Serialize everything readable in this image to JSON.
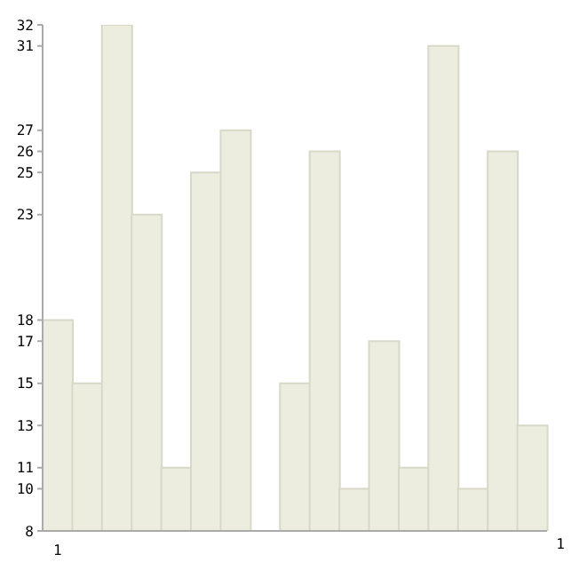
{
  "chart_data": {
    "type": "bar",
    "categories": [
      "1",
      null,
      null,
      null,
      null,
      null,
      null,
      null,
      null,
      null,
      null,
      null,
      null,
      null,
      null,
      null,
      null
    ],
    "values": [
      18,
      15,
      32,
      23,
      11,
      25,
      27,
      8,
      15,
      26,
      10,
      17,
      11,
      31,
      10,
      26,
      13
    ],
    "color": "#ededdf",
    "ylim": [
      8,
      32
    ],
    "yticks": [
      8,
      10,
      11,
      13,
      15,
      17,
      18,
      23,
      25,
      26,
      27,
      31,
      32
    ],
    "annotations": [
      "1"
    ],
    "grid": false,
    "legend": false
  }
}
